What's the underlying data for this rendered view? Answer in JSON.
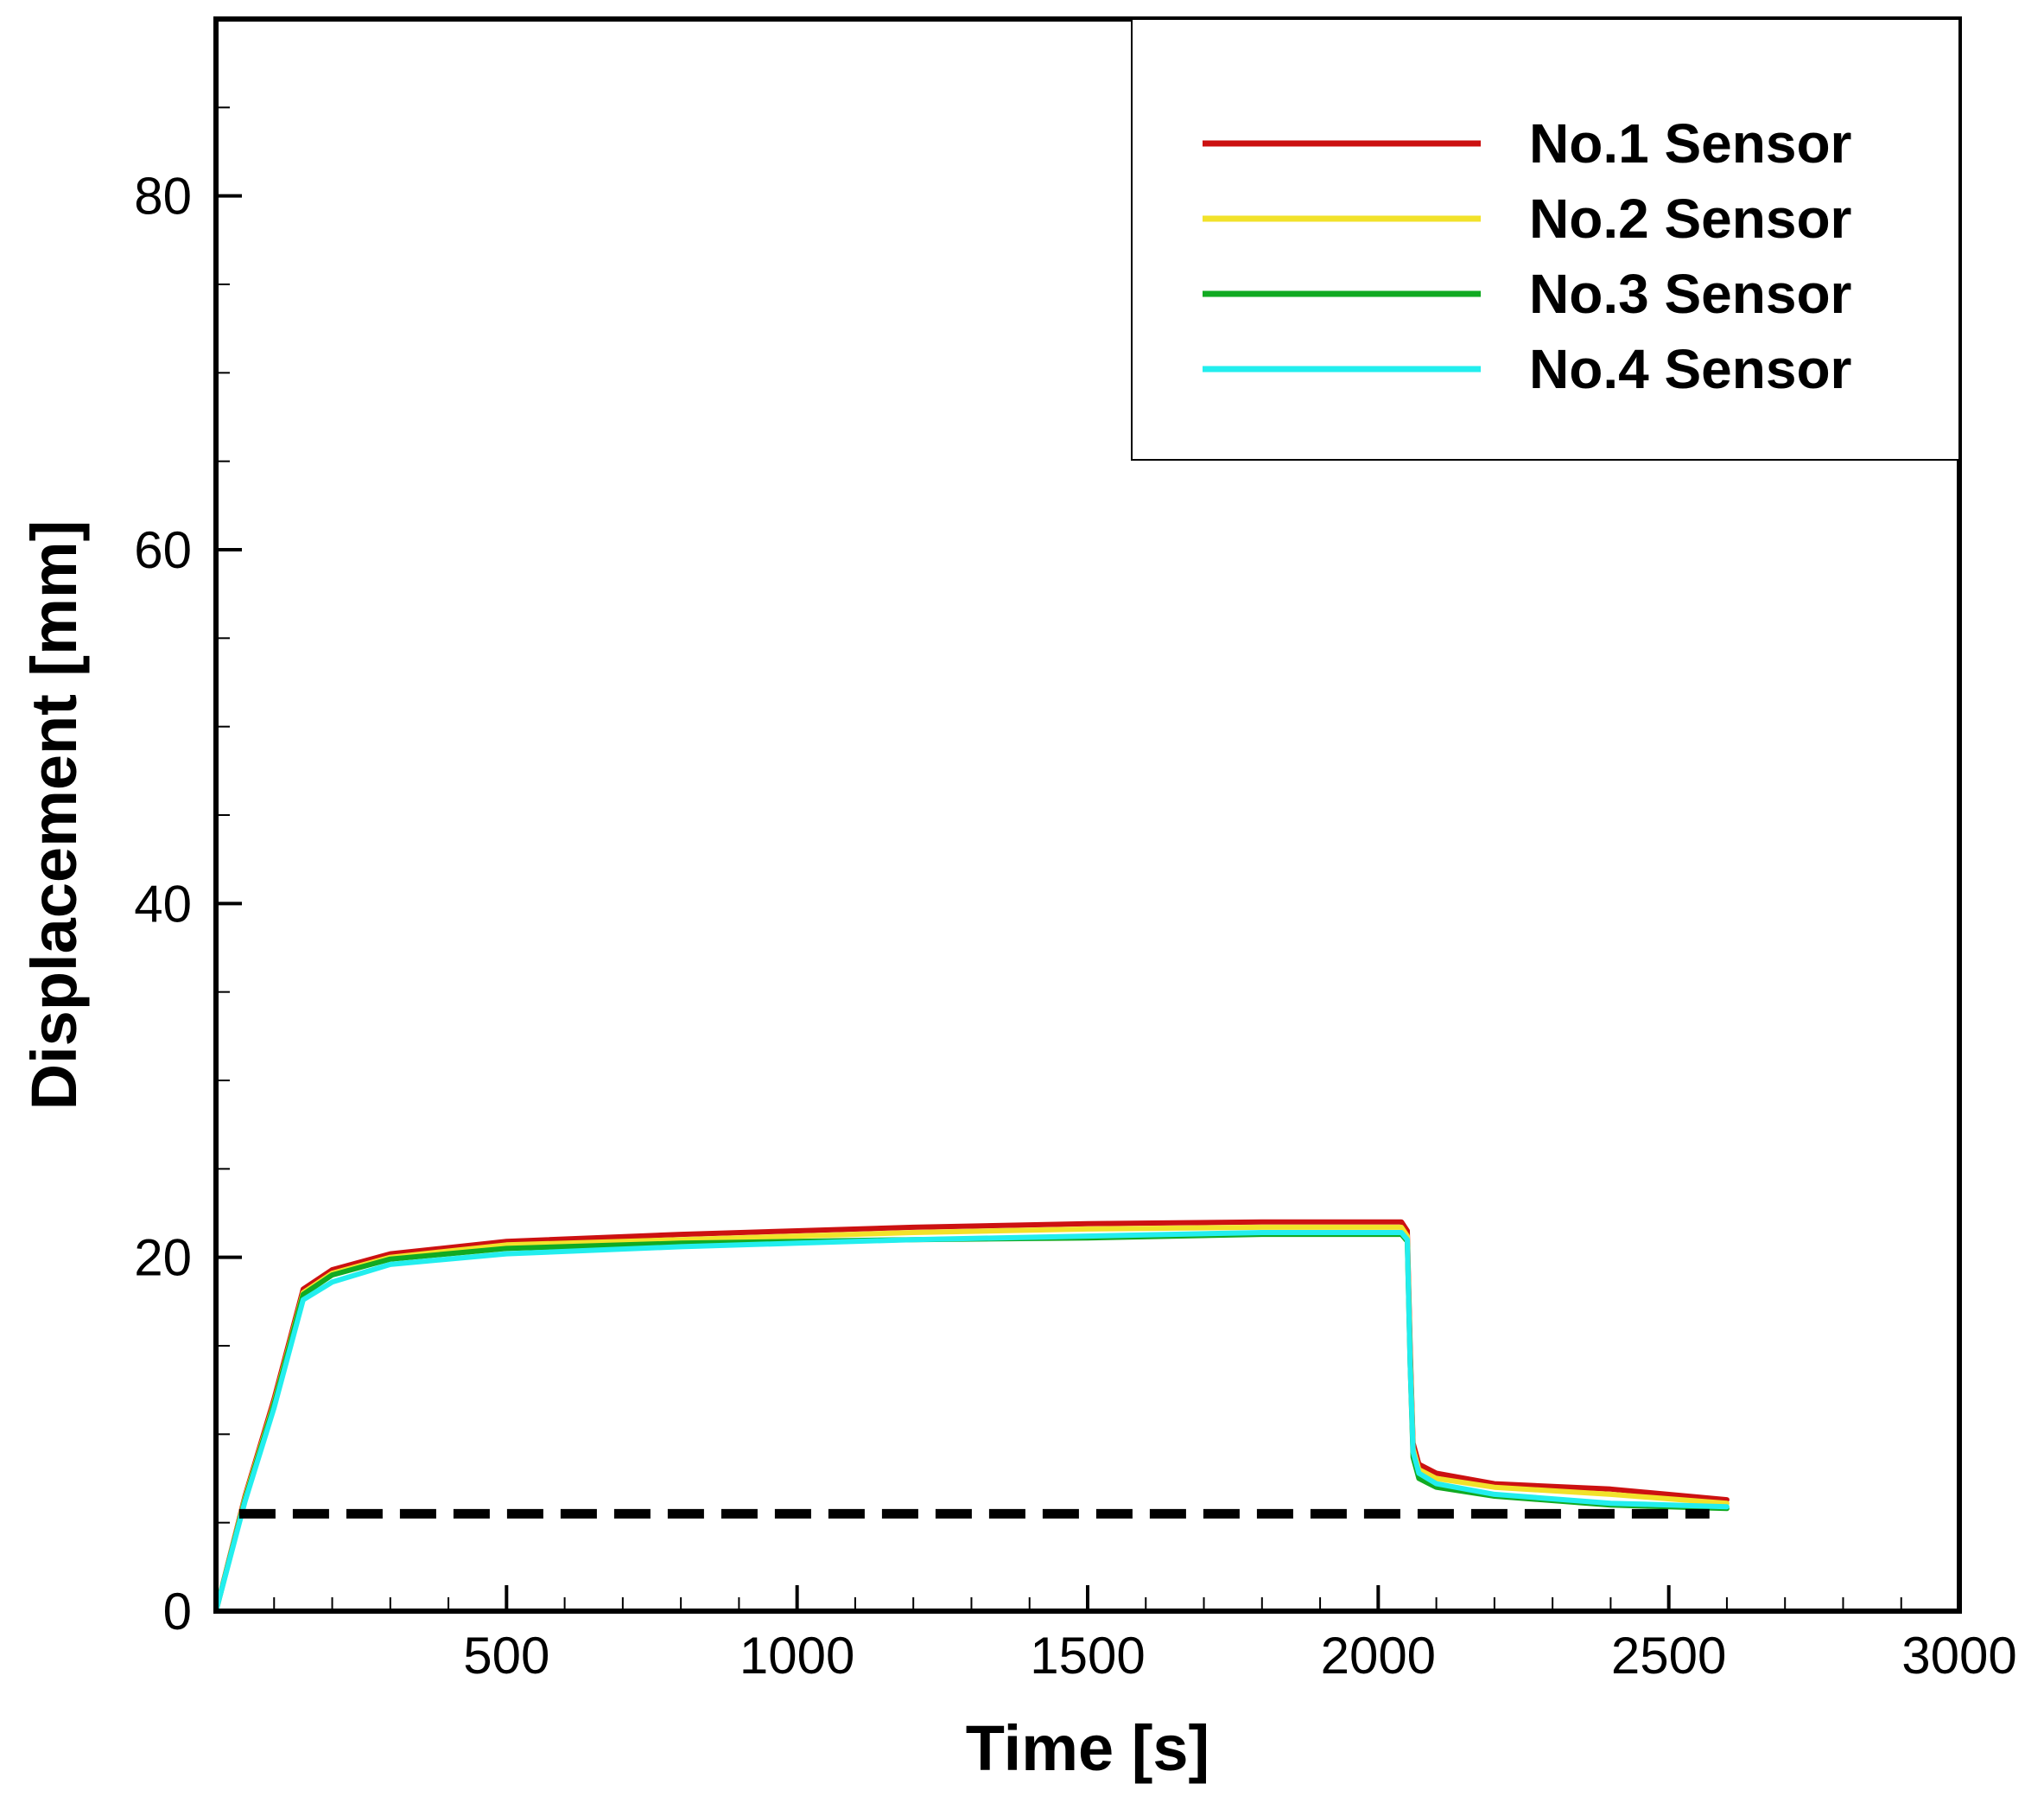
{
  "chart_data": {
    "type": "line",
    "title": "",
    "xlabel": "Time [s]",
    "ylabel": "Displacement [mm]",
    "xlim": [
      0,
      3000
    ],
    "ylim": [
      0,
      90
    ],
    "x_ticks": [
      500,
      1000,
      1500,
      2000,
      2500,
      3000
    ],
    "x_tick_labels": [
      "500",
      "1000",
      "1500",
      "2000",
      "2500",
      "3000"
    ],
    "x_minor_step": 100,
    "y_ticks": [
      0,
      20,
      40,
      60,
      80
    ],
    "y_tick_labels": [
      "0",
      "20",
      "40",
      "60",
      "80"
    ],
    "y_minor_step": 5,
    "grid": false,
    "legend_position": "top-right",
    "series": [
      {
        "name": "No.1 Sensor",
        "color": "#cc1111",
        "x": [
          0,
          50,
          100,
          150,
          200,
          300,
          500,
          800,
          1000,
          1200,
          1500,
          1800,
          2000,
          2040,
          2050,
          2055,
          2060,
          2070,
          2100,
          2200,
          2400,
          2600
        ],
        "y": [
          0,
          6.5,
          12,
          18.2,
          19.3,
          20.2,
          20.9,
          21.3,
          21.5,
          21.7,
          21.9,
          22.0,
          22.0,
          22.0,
          21.5,
          15,
          9.5,
          8.3,
          7.8,
          7.2,
          6.9,
          6.3
        ]
      },
      {
        "name": "No.2 Sensor",
        "color": "#f2e22a",
        "x": [
          0,
          50,
          100,
          150,
          200,
          300,
          500,
          800,
          1000,
          1200,
          1500,
          1800,
          2000,
          2040,
          2050,
          2055,
          2060,
          2070,
          2100,
          2200,
          2400,
          2600
        ],
        "y": [
          0,
          6.4,
          11.8,
          18.0,
          19.1,
          20.0,
          20.7,
          21.0,
          21.2,
          21.4,
          21.6,
          21.7,
          21.7,
          21.7,
          21.2,
          14.5,
          9.2,
          8.0,
          7.5,
          7.0,
          6.6,
          6.1
        ]
      },
      {
        "name": "No.3 Sensor",
        "color": "#11aa22",
        "x": [
          0,
          50,
          100,
          150,
          200,
          300,
          500,
          800,
          1000,
          1200,
          1500,
          1800,
          2000,
          2040,
          2050,
          2055,
          2060,
          2070,
          2100,
          2200,
          2400,
          2600
        ],
        "y": [
          0,
          6.3,
          11.7,
          17.9,
          19.0,
          19.9,
          20.5,
          20.8,
          20.9,
          21.0,
          21.1,
          21.3,
          21.3,
          21.3,
          20.9,
          14,
          8.7,
          7.5,
          7.0,
          6.5,
          6.0,
          5.8
        ]
      },
      {
        "name": "No.4 Sensor",
        "color": "#22eeee",
        "x": [
          0,
          50,
          100,
          150,
          200,
          300,
          500,
          800,
          1000,
          1200,
          1500,
          1800,
          2000,
          2040,
          2050,
          2055,
          2060,
          2070,
          2100,
          2200,
          2400,
          2600
        ],
        "y": [
          0,
          6.2,
          11.5,
          17.6,
          18.6,
          19.6,
          20.2,
          20.6,
          20.8,
          21.0,
          21.2,
          21.4,
          21.4,
          21.4,
          21.0,
          14,
          9.0,
          7.8,
          7.2,
          6.6,
          6.1,
          5.9
        ]
      }
    ],
    "reference_line": {
      "y": 5.5,
      "x_start": 40,
      "x_end": 2570,
      "style": "dashed",
      "color": "#000000"
    }
  }
}
